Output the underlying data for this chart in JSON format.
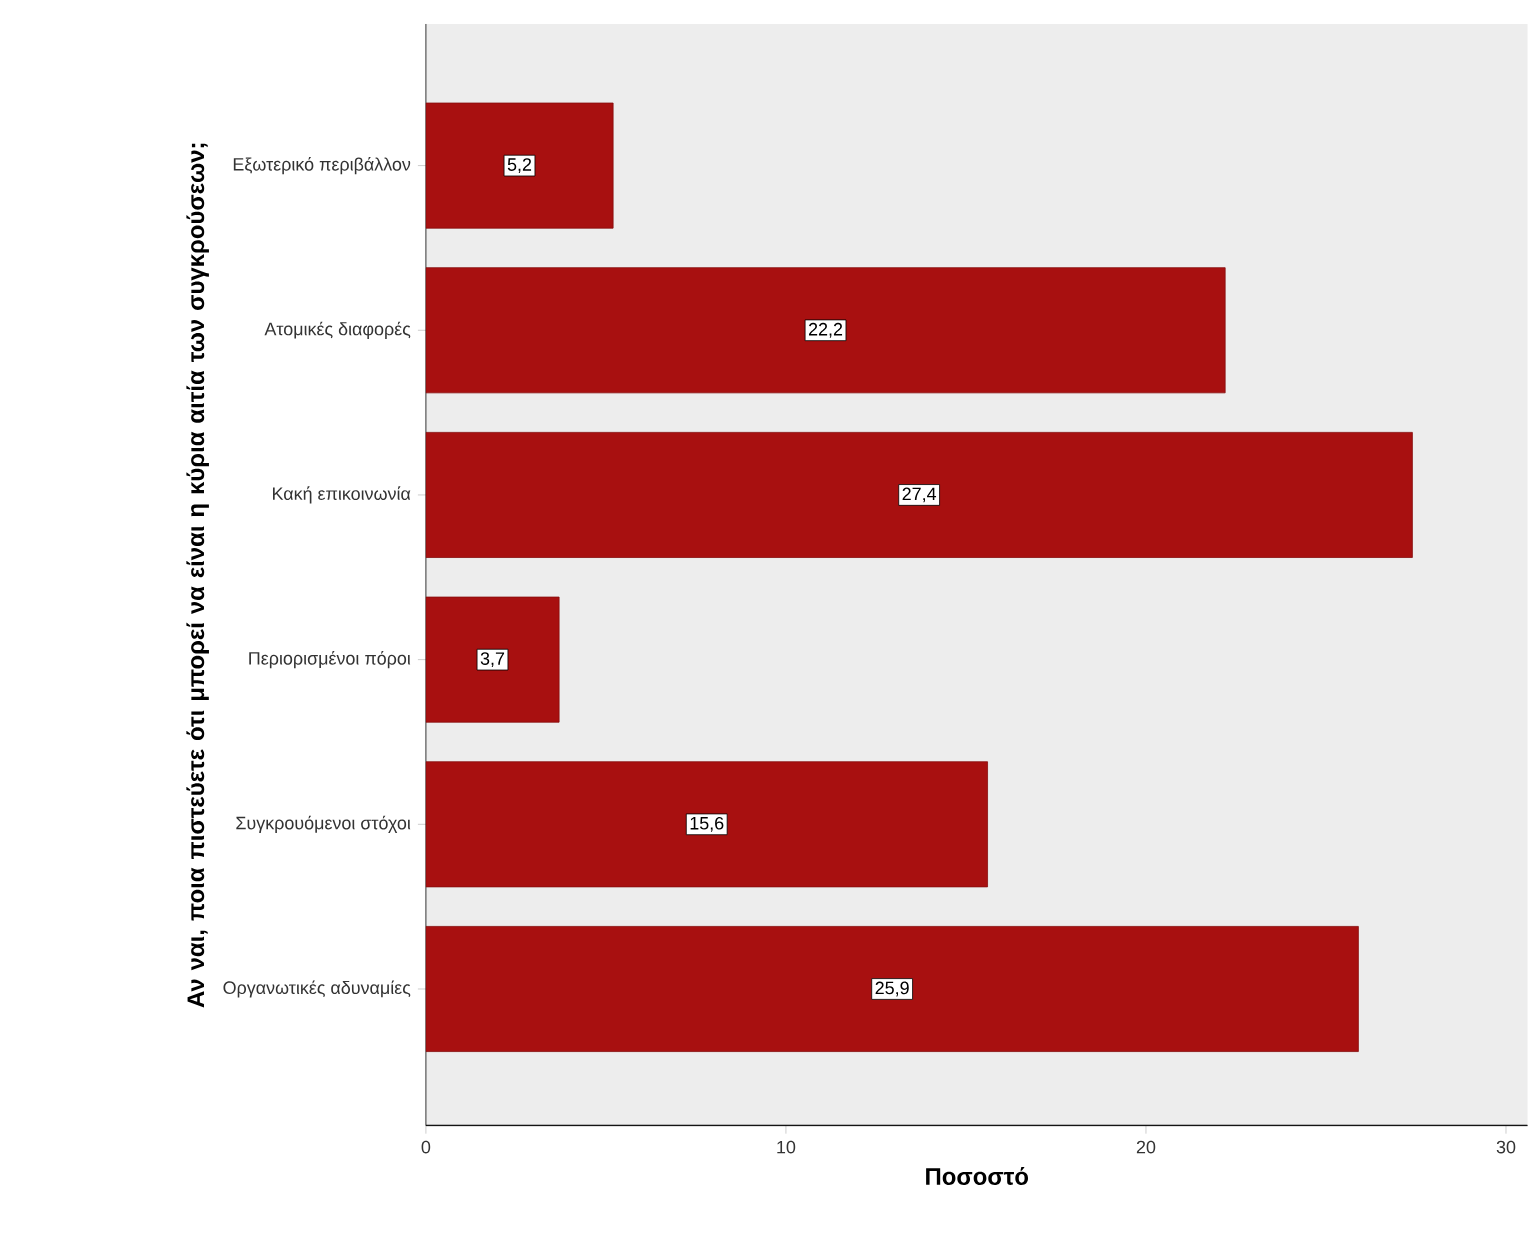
{
  "chart_data": {
    "type": "bar",
    "orientation": "horizontal",
    "ylabel": "Αν ναι, ποια πιστεύετε ότι μπορεί να είναι η κύρια αιτία των συγκρούσεων;",
    "xlabel": "Ποσοστό",
    "categories": [
      "Εξωτερικό περιβάλλον",
      "Ατομικές διαφορές",
      "Κακή επικοινωνία",
      "Περιορισμένοι πόροι",
      "Συγκρουόμενοι στόχοι",
      "Οργανωτικές αδυναμίες"
    ],
    "values": [
      5.2,
      22.2,
      27.4,
      3.7,
      15.6,
      25.9
    ],
    "value_labels": [
      "5,2",
      "22,2",
      "27,4",
      "3,7",
      "15,6",
      "25,9"
    ],
    "color": "#a81010",
    "xlim": [
      0,
      30.6
    ],
    "xticks": [
      0,
      10,
      20,
      30
    ]
  }
}
